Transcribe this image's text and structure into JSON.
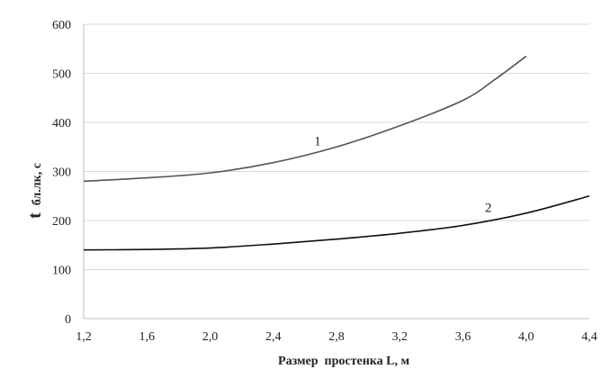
{
  "chart_data": {
    "type": "line",
    "xlabel": "Размер  простенка L, м",
    "ylabel_main": "t",
    "ylabel_sub": "бл.лк, с",
    "x_ticks": [
      "1,2",
      "1,6",
      "2,0",
      "2,4",
      "2,8",
      "3,2",
      "3,6",
      "4,0",
      "4,4"
    ],
    "y_ticks": [
      "0",
      "100",
      "200",
      "300",
      "400",
      "500",
      "600"
    ],
    "xlim": [
      1.2,
      4.4
    ],
    "ylim": [
      0,
      600
    ],
    "grid": {
      "horizontal": true,
      "vertical": false
    },
    "series": [
      {
        "label": "1",
        "color": "#555555",
        "x": [
          1.2,
          1.6,
          2.0,
          2.4,
          2.8,
          3.2,
          3.6,
          3.8,
          4.0
        ],
        "y": [
          280,
          287,
          297,
          318,
          350,
          393,
          445,
          487,
          535
        ]
      },
      {
        "label": "2",
        "color": "#111111",
        "x": [
          1.2,
          1.6,
          2.0,
          2.4,
          2.8,
          3.2,
          3.6,
          4.0,
          4.4
        ],
        "y": [
          140,
          141,
          144,
          152,
          162,
          174,
          190,
          215,
          250
        ]
      }
    ],
    "series_labels_at": [
      {
        "x": 2.68,
        "y": 350
      },
      {
        "x": 3.76,
        "y": 214
      }
    ]
  }
}
